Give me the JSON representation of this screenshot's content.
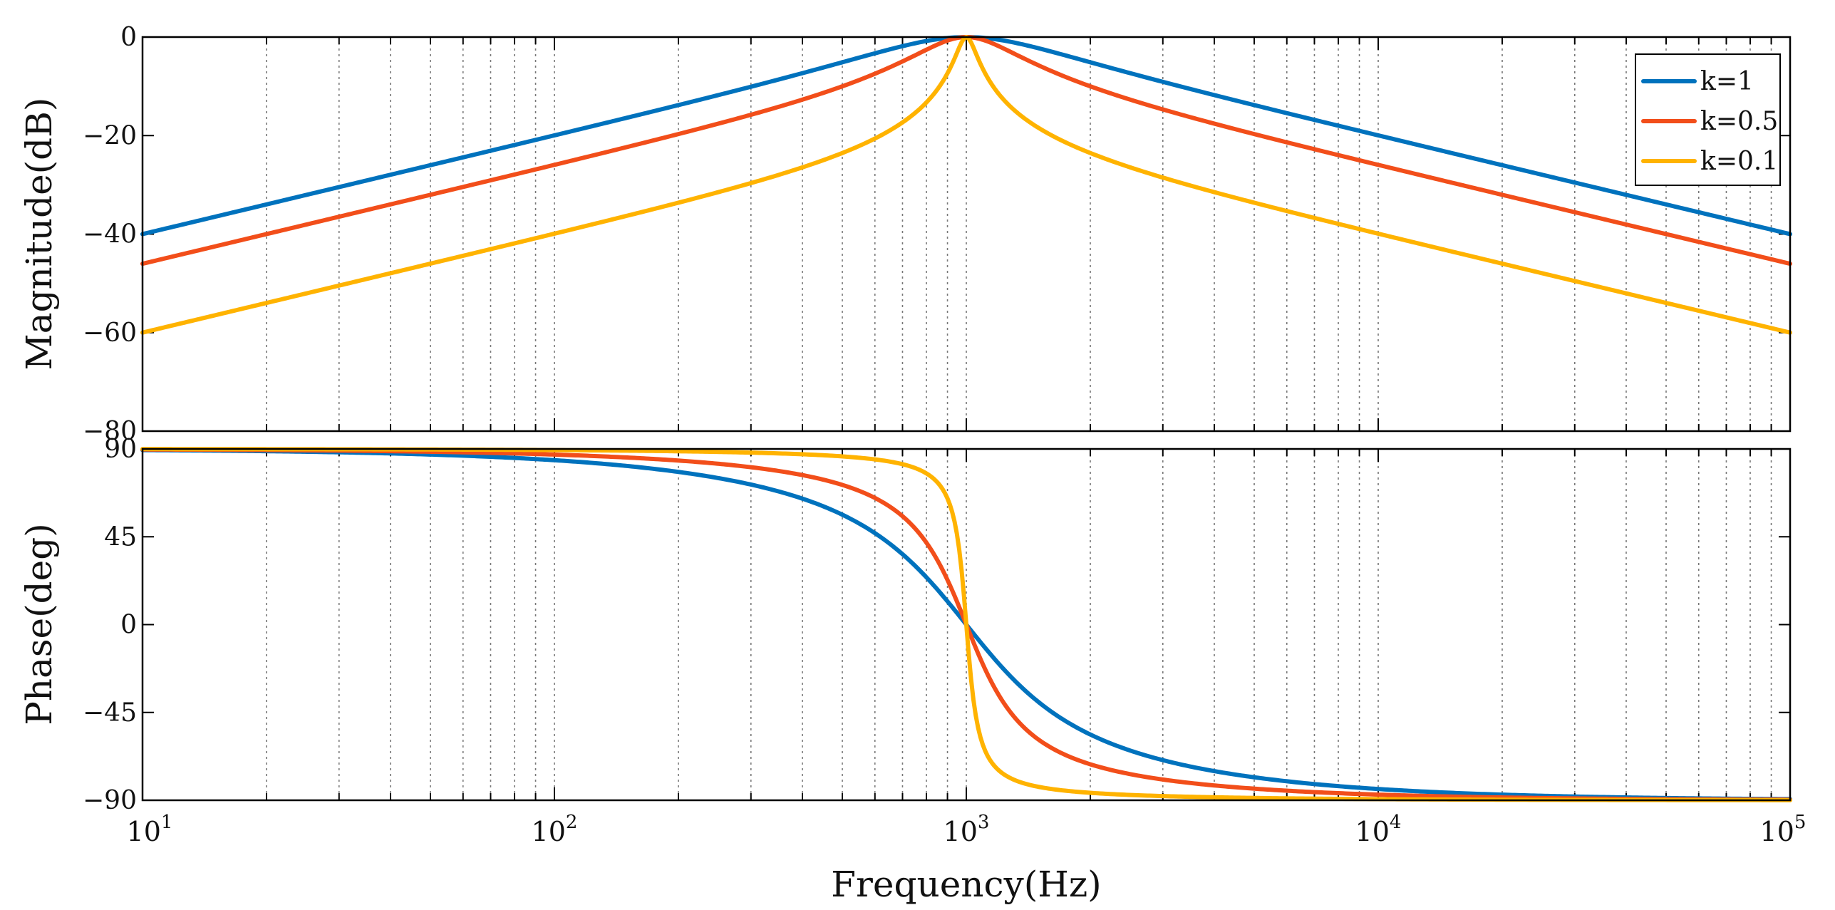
{
  "chart_data": {
    "type": "line",
    "subtype": "bode",
    "xscale": "log",
    "xlabel": "Frequency(Hz)",
    "xlim": [
      10,
      100000
    ],
    "x_ticks": [
      {
        "base": "10",
        "exp": "1"
      },
      {
        "base": "10",
        "exp": "2"
      },
      {
        "base": "10",
        "exp": "3"
      },
      {
        "base": "10",
        "exp": "4"
      },
      {
        "base": "10",
        "exp": "5"
      }
    ],
    "grid": true,
    "legend_position": "top-right",
    "center_frequency": 1000,
    "colors": [
      "#0072BD",
      "#F24E1A",
      "#FFB300"
    ],
    "panels": [
      {
        "id": "magnitude",
        "ylabel": "Magnitude(dB)",
        "ylim": [
          -80,
          0
        ],
        "y_ticks": [
          0,
          -20,
          -40,
          -60,
          -80
        ],
        "y_tick_labels": [
          "0",
          "−20",
          "−40",
          "−60",
          "−80"
        ]
      },
      {
        "id": "phase",
        "ylabel": "Phase(deg)",
        "ylim": [
          -90,
          90
        ],
        "y_ticks": [
          90,
          45,
          0,
          -45,
          -90
        ],
        "y_tick_labels": [
          "90",
          "45",
          "0",
          "−45",
          "−90"
        ]
      }
    ],
    "series": [
      {
        "name": "k=1",
        "k": 1
      },
      {
        "name": "k=0.5",
        "k": 0.5
      },
      {
        "name": "k=0.1",
        "k": 0.1
      }
    ]
  }
}
